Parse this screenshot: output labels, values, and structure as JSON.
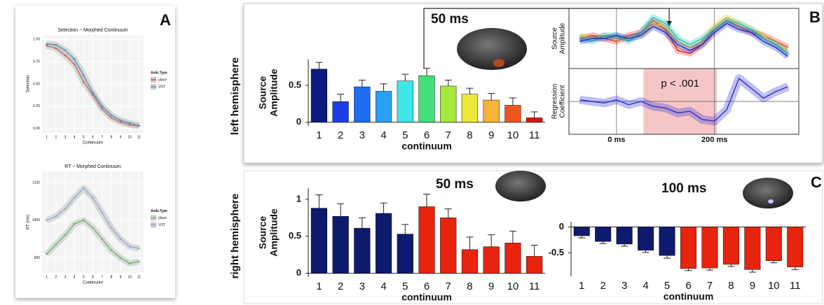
{
  "chart_data": [
    {
      "type": "line",
      "panel": "A",
      "title": "Selection ~ Morphed Continuum",
      "xlabel": "Continuum",
      "ylabel": "Selection",
      "legend_title": "Amb.Type",
      "x": [
        1,
        2,
        3,
        4,
        5,
        6,
        7,
        8,
        9,
        10,
        11
      ],
      "xlim": [
        0.5,
        11.5
      ],
      "xticks": [
        1,
        2,
        3,
        4,
        5,
        6,
        7,
        8,
        9,
        10,
        11
      ],
      "ylim": [
        -0.05,
        1.05
      ],
      "yticks": [
        {
          "value": 0,
          "label": "0.00"
        },
        {
          "value": 0.25,
          "label": "0.25"
        },
        {
          "value": 0.5,
          "label": "0.50"
        },
        {
          "value": 0.75,
          "label": "0.75"
        },
        {
          "value": 1,
          "label": "1.00"
        }
      ],
      "series": [
        {
          "name": "place",
          "color": "#d9534f",
          "values": [
            0.93,
            0.9,
            0.82,
            0.72,
            0.52,
            0.38,
            0.22,
            0.12,
            0.07,
            0.04,
            0.03
          ]
        },
        {
          "name": "VOT",
          "color": "#4a90c2",
          "values": [
            0.95,
            0.94,
            0.88,
            0.78,
            0.6,
            0.4,
            0.25,
            0.15,
            0.09,
            0.06,
            0.03
          ]
        }
      ]
    },
    {
      "type": "line",
      "title": "RT ~ Morphed Continuum",
      "xlabel": "Continuum",
      "ylabel": "RT (ms)",
      "legend_title": "Amb.Type",
      "x": [
        1,
        2,
        3,
        4,
        5,
        6,
        7,
        8,
        9,
        10,
        11
      ],
      "xlim": [
        0.5,
        11.5
      ],
      "xticks": [
        1,
        2,
        3,
        4,
        5,
        6,
        7,
        8,
        9,
        10,
        11
      ],
      "ylim": [
        860,
        1130
      ],
      "yticks": [
        900,
        1000,
        1100
      ],
      "series": [
        {
          "name": "place",
          "color": "#5cb85c",
          "values": [
            910,
            935,
            960,
            990,
            1000,
            980,
            950,
            920,
            900,
            885,
            890
          ]
        },
        {
          "name": "VOT",
          "color": "#8fa8d6",
          "values": [
            1000,
            1010,
            1030,
            1060,
            1085,
            1060,
            1020,
            980,
            950,
            930,
            925
          ]
        }
      ]
    },
    {
      "type": "bar",
      "hemisphere": "left hemisphere",
      "annotation": "50 ms",
      "ylabel": [
        "Source",
        "Amplitude"
      ],
      "xlabel": "continuum",
      "categories": [
        "1",
        "2",
        "3",
        "4",
        "5",
        "6",
        "7",
        "8",
        "9",
        "10",
        "11"
      ],
      "values": [
        0.72,
        0.28,
        0.48,
        0.42,
        0.56,
        0.63,
        0.49,
        0.38,
        0.3,
        0.23,
        0.06
      ],
      "errors": [
        0.09,
        0.1,
        0.09,
        0.1,
        0.09,
        0.1,
        0.08,
        0.08,
        0.09,
        0.1,
        0.08
      ],
      "colors": [
        "#0d1a80",
        "#1a3ee8",
        "#1e6cf0",
        "#2aa0f2",
        "#3ee6e8",
        "#43e07a",
        "#a8e83c",
        "#ece83a",
        "#f4b43a",
        "#f0541e",
        "#e01010"
      ],
      "ylim": [
        -0.05,
        0.85
      ],
      "yticks": [
        0,
        0.5
      ]
    },
    {
      "type": "timeseries",
      "panel": "B",
      "ylabel_top": [
        "Source",
        "Amplitude"
      ],
      "ylabel_bottom": [
        "Regression",
        "Coefficient"
      ],
      "annotation": "p < .001",
      "sig_window": [
        55,
        205
      ],
      "x": [
        -75,
        -50,
        -25,
        0,
        25,
        50,
        75,
        100,
        125,
        150,
        175,
        200,
        225,
        250,
        275,
        300,
        325,
        350
      ],
      "xlim": [
        -97,
        372
      ],
      "xticks": [
        {
          "value": 0,
          "label": "0 ms"
        },
        {
          "value": 200,
          "label": "200 ms"
        }
      ],
      "ylim": [
        -1,
        1
      ],
      "series": [
        {
          "color": "#e02020",
          "values": [
            0,
            0.1,
            0,
            -0.1,
            0.1,
            0.2,
            0.6,
            0.3,
            -0.4,
            -0.5,
            -0.2,
            0.3,
            0.6,
            0.4,
            0.2,
            0.1,
            -0.1,
            -0.3
          ]
        },
        {
          "color": "#e8c020",
          "values": [
            0.1,
            0,
            0.1,
            0,
            0,
            0.1,
            0.5,
            0.4,
            -0.1,
            -0.3,
            -0.1,
            0.4,
            0.7,
            0.5,
            0.3,
            0.1,
            -0.2,
            -0.4
          ]
        },
        {
          "color": "#20c8c8",
          "values": [
            0,
            -0.1,
            0.1,
            0.1,
            -0.1,
            0.2,
            0.7,
            0.5,
            0,
            -0.2,
            0,
            0.3,
            0.6,
            0.5,
            0.3,
            0,
            -0.2,
            -0.5
          ]
        },
        {
          "color": "#2030c8",
          "values": [
            -0.1,
            0,
            0,
            0.1,
            0,
            0.1,
            0.4,
            0.2,
            -0.2,
            -0.4,
            -0.2,
            0.2,
            0.5,
            0.3,
            0.2,
            -0.1,
            -0.3,
            -0.6
          ]
        },
        {
          "color": "#3030d0",
          "role": "coefficient",
          "values": [
            0.05,
            0,
            -0.05,
            0.05,
            -0.1,
            0,
            -0.15,
            -0.2,
            -0.35,
            -0.3,
            -0.55,
            -0.6,
            -0.25,
            0.7,
            0.4,
            0.1,
            0.3,
            0.45
          ]
        }
      ]
    },
    {
      "type": "bar",
      "panel": "C",
      "hemisphere": "right hemisphere",
      "annotation": "50 ms",
      "ylabel": [
        "Source",
        "Amplitude"
      ],
      "xlabel": "continuum",
      "categories": [
        "1",
        "2",
        "3",
        "4",
        "5",
        "6",
        "7",
        "8",
        "9",
        "10",
        "11"
      ],
      "values": [
        0.88,
        0.77,
        0.61,
        0.81,
        0.53,
        0.9,
        0.75,
        0.32,
        0.36,
        0.41,
        0.23
      ],
      "errors": [
        0.18,
        0.17,
        0.14,
        0.14,
        0.13,
        0.17,
        0.12,
        0.17,
        0.16,
        0.16,
        0.15
      ],
      "colors": [
        "#0d1a6e",
        "#0d1a6e",
        "#0d1a6e",
        "#0d1a6e",
        "#0d1a6e",
        "#e8230e",
        "#e8230e",
        "#e8230e",
        "#e8230e",
        "#e8230e",
        "#e8230e"
      ],
      "ylim": [
        -0.05,
        1.15
      ],
      "yticks": [
        0,
        0.5,
        1
      ]
    },
    {
      "type": "bar",
      "annotation": "100 ms",
      "xlabel": "continuum",
      "categories": [
        "1",
        "2",
        "3",
        "4",
        "5",
        "6",
        "7",
        "8",
        "9",
        "10",
        "11"
      ],
      "values": [
        -0.17,
        -0.28,
        -0.33,
        -0.45,
        -0.55,
        -0.8,
        -0.79,
        -0.72,
        -0.82,
        -0.65,
        -0.77
      ],
      "errors": [
        0.04,
        0.04,
        0.04,
        0.04,
        0.05,
        0.04,
        0.04,
        0.04,
        0.05,
        0.04,
        0.05
      ],
      "colors": [
        "#0d1a6e",
        "#0d1a6e",
        "#0d1a6e",
        "#0d1a6e",
        "#0d1a6e",
        "#e8230e",
        "#e8230e",
        "#e8230e",
        "#e8230e",
        "#e8230e",
        "#e8230e"
      ],
      "ylim": [
        -0.95,
        0.1
      ],
      "yticks": [
        0,
        -0.5
      ]
    }
  ]
}
